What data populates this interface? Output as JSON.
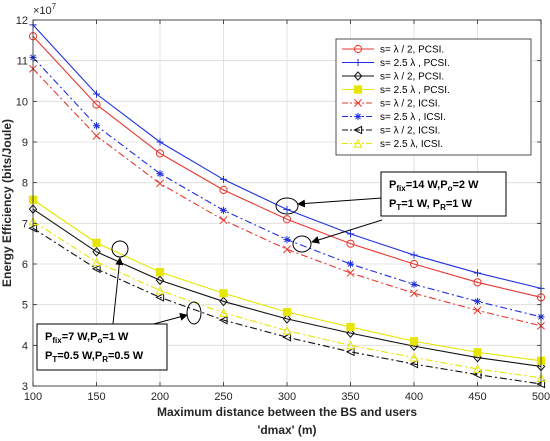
{
  "chart_data": {
    "type": "line",
    "title": "",
    "xlabel": "Maximum distance between the BS and users",
    "xlabel2": "'dmax' (m)",
    "ylabel": "Energy Efficiency (bits/Joule)",
    "y_exponent": "×10",
    "y_exponent_power": "7",
    "xlim": [
      100,
      500
    ],
    "ylim": [
      3,
      12
    ],
    "x": [
      100,
      150,
      200,
      250,
      300,
      350,
      400,
      450,
      500
    ],
    "x_tick_labels": [
      "100",
      "150",
      "200",
      "250",
      "300",
      "350",
      "400",
      "450",
      "500"
    ],
    "y_ticks": [
      3,
      4,
      5,
      6,
      7,
      8,
      9,
      10,
      11,
      12
    ],
    "y_tick_labels": [
      "3",
      "4",
      "5",
      "6",
      "7",
      "8",
      "9",
      "10",
      "11",
      "12"
    ],
    "grid": true,
    "legend_position": "top-right",
    "series": [
      {
        "name": "s= λ / 2, PCSI.",
        "color": "#e8372f",
        "dash": "solid",
        "marker": "circle",
        "values": [
          11.6,
          9.92,
          8.72,
          7.82,
          7.1,
          6.5,
          6.0,
          5.55,
          5.18
        ]
      },
      {
        "name": "s= 2.5 λ , PCSI.",
        "color": "#1f2fe0",
        "dash": "solid",
        "marker": "plus",
        "values": [
          11.88,
          10.18,
          9.0,
          8.08,
          7.34,
          6.74,
          6.22,
          5.78,
          5.4
        ]
      },
      {
        "name": "s= λ / 2, PCSI.",
        "color": "#111111",
        "dash": "solid",
        "marker": "diamond",
        "values": [
          7.35,
          6.3,
          5.6,
          5.08,
          4.65,
          4.3,
          3.98,
          3.7,
          3.48
        ]
      },
      {
        "name": "s= 2.5 λ , PCSI.",
        "color": "#e6e600",
        "dash": "solid",
        "marker": "square",
        "values": [
          7.58,
          6.52,
          5.8,
          5.28,
          4.82,
          4.45,
          4.1,
          3.83,
          3.62
        ]
      },
      {
        "name": "s= λ / 2, ICSI.",
        "color": "#e8372f",
        "dash": "dashdot",
        "marker": "x",
        "values": [
          10.8,
          9.15,
          7.98,
          7.08,
          6.36,
          5.78,
          5.28,
          4.86,
          4.48
        ]
      },
      {
        "name": "s= 2.5 λ , ICSI.",
        "color": "#1f2fe0",
        "dash": "dashdot",
        "marker": "asterisk",
        "values": [
          11.08,
          9.4,
          8.22,
          7.32,
          6.6,
          6.0,
          5.5,
          5.08,
          4.7
        ]
      },
      {
        "name": "s= λ / 2, ICSI.",
        "color": "#111111",
        "dash": "dashdot",
        "marker": "triangle-left",
        "values": [
          6.88,
          5.88,
          5.18,
          4.62,
          4.2,
          3.84,
          3.54,
          3.28,
          3.05
        ]
      },
      {
        "name": "s= 2.5 λ, ICSI.",
        "color": "#e6e600",
        "dash": "dashdot",
        "marker": "triangle-up",
        "values": [
          7.05,
          6.05,
          5.35,
          4.8,
          4.36,
          4.0,
          3.7,
          3.42,
          3.2
        ]
      }
    ],
    "annotations": [
      {
        "lines": [
          [
            {
              "t": "P",
              "s": "n"
            },
            {
              "t": "fix",
              "s": "sub"
            },
            {
              "t": "=14 W,P",
              "s": "n"
            },
            {
              "t": "o",
              "s": "sub"
            },
            {
              "t": "=2 W",
              "s": "n"
            }
          ],
          [
            {
              "t": "P",
              "s": "n"
            },
            {
              "t": "T",
              "s": "sub"
            },
            {
              "t": "=1 W, P",
              "s": "n"
            },
            {
              "t": "R",
              "s": "sub"
            },
            {
              "t": "=1 W",
              "s": "n"
            }
          ]
        ]
      },
      {
        "lines": [
          [
            {
              "t": "P",
              "s": "n"
            },
            {
              "t": "fix",
              "s": "sub"
            },
            {
              "t": "=7 W,P",
              "s": "n"
            },
            {
              "t": "o",
              "s": "sub"
            },
            {
              "t": "=1 W",
              "s": "n"
            }
          ],
          [
            {
              "t": "P",
              "s": "n"
            },
            {
              "t": "T",
              "s": "sub"
            },
            {
              "t": "=0.5 W,P",
              "s": "n"
            },
            {
              "t": "R",
              "s": "sub"
            },
            {
              "t": "=0.5 W",
              "s": "n"
            }
          ]
        ]
      }
    ]
  }
}
